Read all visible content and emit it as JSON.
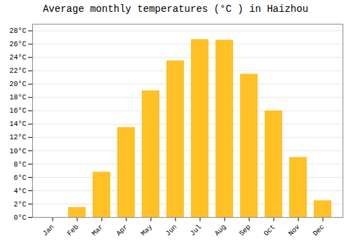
{
  "chart_data": {
    "type": "bar",
    "title": "Average monthly temperatures (°C ) in Haizhou",
    "categories": [
      "Jan",
      "Feb",
      "Mar",
      "Apr",
      "May",
      "Jun",
      "Jul",
      "Aug",
      "Sep",
      "Oct",
      "Nov",
      "Dec"
    ],
    "values": [
      0,
      1.5,
      6.8,
      13.5,
      19.0,
      23.5,
      26.7,
      26.6,
      21.5,
      16.0,
      9.0,
      2.5
    ],
    "color": "#FFC125",
    "ylim": [
      0,
      29
    ],
    "yticks": [
      {
        "value": 0,
        "label": "0°C"
      },
      {
        "value": 2,
        "label": "2°C"
      },
      {
        "value": 4,
        "label": "4°C"
      },
      {
        "value": 6,
        "label": "6°C"
      },
      {
        "value": 8,
        "label": "8°C"
      },
      {
        "value": 10,
        "label": "10°C"
      },
      {
        "value": 12,
        "label": "12°C"
      },
      {
        "value": 14,
        "label": "14°C"
      },
      {
        "value": 16,
        "label": "16°C"
      },
      {
        "value": 18,
        "label": "18°C"
      },
      {
        "value": 20,
        "label": "20°C"
      },
      {
        "value": 22,
        "label": "22°C"
      },
      {
        "value": 24,
        "label": "24°C"
      },
      {
        "value": 26,
        "label": "26°C"
      },
      {
        "value": 28,
        "label": "28°C"
      }
    ],
    "grid": true
  }
}
